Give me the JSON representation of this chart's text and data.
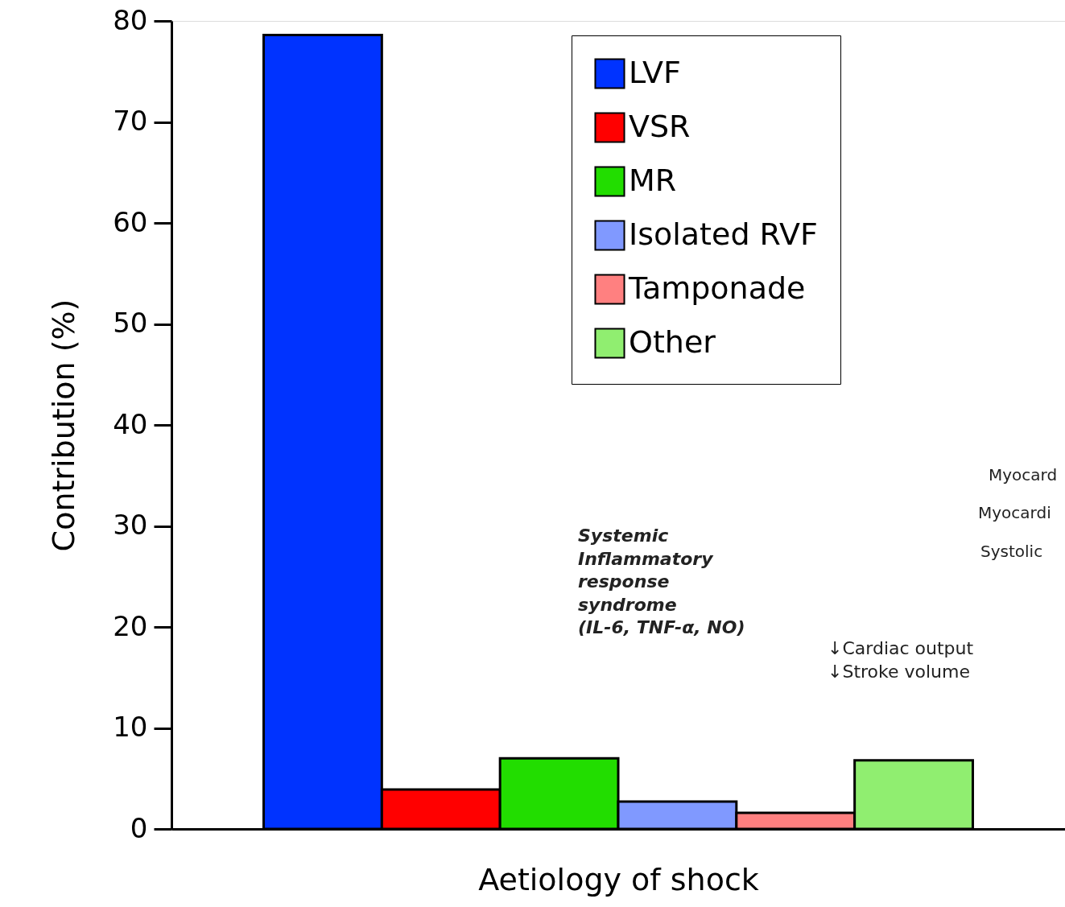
{
  "chart_data": {
    "type": "bar",
    "xlabel": "Aetiology of shock",
    "ylabel": "Contribution (%)",
    "categories": [
      null
    ],
    "series": [
      {
        "name": "LVF",
        "color": "#0033ff",
        "values": [
          78.6
        ]
      },
      {
        "name": "VSR",
        "color": "#ff0000",
        "values": [
          3.9
        ]
      },
      {
        "name": "MR",
        "color": "#22dd00",
        "values": [
          7.0
        ]
      },
      {
        "name": "Isolated RVF",
        "color": "#8099ff",
        "values": [
          2.7
        ]
      },
      {
        "name": "Tamponade",
        "color": "#ff8080",
        "values": [
          1.6
        ]
      },
      {
        "name": "Other",
        "color": "#90ee70",
        "values": [
          6.8
        ]
      }
    ],
    "ylim": [
      0,
      80
    ],
    "yticks": [
      0,
      10,
      20,
      30,
      40,
      50,
      60,
      70,
      80
    ],
    "grid": false,
    "legend": "top right",
    "tick_labels": "y",
    "annotations": [
      "Systemic\nInflammatory\nresponse\nsyndrome\n(IL-6, TNF-α, NO)",
      "↓Cardiac output\n↓Stroke volume",
      "Myocard",
      "Myocardi",
      "Systolic"
    ]
  }
}
